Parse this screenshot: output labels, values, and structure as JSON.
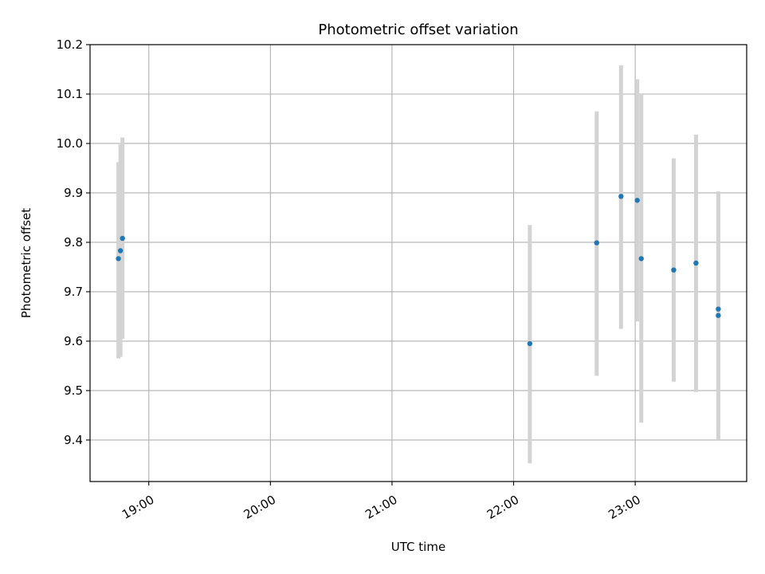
{
  "chart_data": {
    "type": "scatter",
    "title": "Photometric offset variation",
    "xlabel": "UTC time",
    "ylabel": "Photometric offset",
    "x_axis_type": "time",
    "xlim": [
      "18:31",
      "23:55"
    ],
    "ylim": [
      9.316,
      10.2
    ],
    "xticks": [
      "19:00",
      "20:00",
      "21:00",
      "22:00",
      "23:00"
    ],
    "yticks": [
      9.4,
      9.5,
      9.6,
      9.7,
      9.8,
      9.9,
      10.0,
      10.1,
      10.2
    ],
    "grid": true,
    "colors": {
      "point": "#1f77b4",
      "errorbar": "#d3d3d3",
      "grid": "#b0b0b0"
    },
    "points": [
      {
        "x": "18:45",
        "y": 9.767,
        "ylow": 9.565,
        "yhigh": 9.962
      },
      {
        "x": "18:46",
        "y": 9.783,
        "ylow": 9.568,
        "yhigh": 9.998
      },
      {
        "x": "18:47",
        "y": 9.808,
        "ylow": 9.605,
        "yhigh": 10.012
      },
      {
        "x": "22:08",
        "y": 9.595,
        "ylow": 9.353,
        "yhigh": 9.835
      },
      {
        "x": "22:41",
        "y": 9.799,
        "ylow": 9.53,
        "yhigh": 10.065
      },
      {
        "x": "22:53",
        "y": 9.893,
        "ylow": 9.625,
        "yhigh": 10.158
      },
      {
        "x": "23:01",
        "y": 9.885,
        "ylow": 9.64,
        "yhigh": 10.13
      },
      {
        "x": "23:03",
        "y": 9.767,
        "ylow": 9.435,
        "yhigh": 10.1
      },
      {
        "x": "23:19",
        "y": 9.744,
        "ylow": 9.518,
        "yhigh": 9.97
      },
      {
        "x": "23:30",
        "y": 9.758,
        "ylow": 9.497,
        "yhigh": 10.018
      },
      {
        "x": "23:41",
        "y": 9.665,
        "ylow": 9.425,
        "yhigh": 9.903
      },
      {
        "x": "23:41",
        "y": 9.652,
        "ylow": 9.4,
        "yhigh": 9.898
      }
    ]
  }
}
